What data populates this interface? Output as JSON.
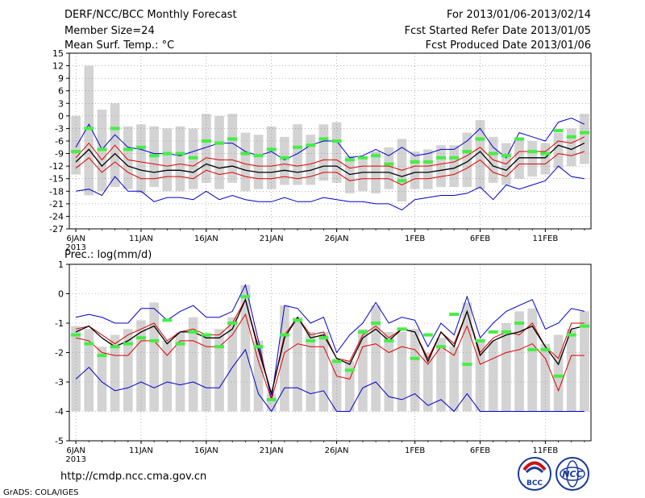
{
  "header": {
    "title": "DERF/NCC/BCC Monthly Forecast",
    "member_size": "Member Size=24",
    "variable": "Mean Surf. Temp.: °C",
    "forecast_range": "For 2013/01/06-2013/02/14",
    "started_refer": "Fcst Started Refer Date 2013/01/05",
    "produced": "Fcst Produced Date 2013/01/06"
  },
  "footer": {
    "url": "http://cmdp.ncc.cma.gov.cn",
    "credit": "GrADS: COLA/IGES",
    "logo_bcc_text": "BCC",
    "logo_ncc_text": "NCC"
  },
  "colors": {
    "bar": "#d3d3d3",
    "member_mark": "#44ee44",
    "mean_line": "#000000",
    "spread_line": "#dd0000",
    "extreme_line": "#0000cc",
    "grid": "#888888"
  },
  "chart_data": [
    {
      "type": "line",
      "title": "Mean Surf. Temp.: °C",
      "x_ticks": [
        {
          "day": 1,
          "label": "6JAN",
          "sub": "2013"
        },
        {
          "day": 6,
          "label": "11JAN"
        },
        {
          "day": 11,
          "label": "16JAN"
        },
        {
          "day": 16,
          "label": "21JAN"
        },
        {
          "day": 21,
          "label": "26JAN"
        },
        {
          "day": 27,
          "label": "1FEB"
        },
        {
          "day": 32,
          "label": "6FEB"
        },
        {
          "day": 37,
          "label": "11FEB"
        }
      ],
      "xlim": [
        0.5,
        40.5
      ],
      "ylim": [
        -27,
        15
      ],
      "yticks": [
        15,
        12,
        9,
        6,
        3,
        0,
        -3,
        -6,
        -9,
        -12,
        -15,
        -18,
        -21,
        -24,
        -27
      ],
      "bar_top": [
        0.0,
        12.0,
        1.5,
        3.0,
        -2.5,
        -2.0,
        -2.5,
        -3.0,
        -2.5,
        -3.0,
        0.5,
        0.0,
        0.5,
        -4.0,
        -4.5,
        -2.5,
        -5.0,
        -2.0,
        -4.5,
        -2.0,
        -1.5,
        -9.5,
        -10.0,
        -8.5,
        -7.5,
        -5.5,
        -8.5,
        -8.0,
        -7.0,
        -7.0,
        -4.0,
        -1.0,
        -5.0,
        -6.5,
        -5.5,
        -6.0,
        -6.5,
        -4.0,
        -3.0,
        0.5
      ],
      "bar_bottom": [
        -14.0,
        -19.0,
        -18.0,
        -17.0,
        -17.5,
        -18.5,
        -17.0,
        -18.0,
        -18.0,
        -17.5,
        -16.0,
        -17.5,
        -16.0,
        -18.0,
        -17.5,
        -17.5,
        -16.5,
        -16.5,
        -16.5,
        -15.5,
        -16.0,
        -18.5,
        -18.0,
        -18.5,
        -17.5,
        -20.5,
        -17.5,
        -17.5,
        -17.0,
        -17.0,
        -17.0,
        -17.5,
        -16.0,
        -16.5,
        -15.0,
        -14.5,
        -14.0,
        -12.5,
        -12.0,
        -11.5
      ],
      "member_marks": [
        -8.5,
        -3.0,
        -8.0,
        -3.0,
        -8.0,
        -7.5,
        -9.5,
        -9.0,
        -9.0,
        -10.0,
        -6.0,
        -6.5,
        -5.5,
        -9.0,
        -9.5,
        -8.0,
        -10.0,
        -7.5,
        -7.0,
        -5.5,
        -6.0,
        -10.5,
        -10.0,
        -9.5,
        -11.5,
        -15.5,
        -11.0,
        -11.0,
        -10.0,
        -10.0,
        -8.5,
        -5.5,
        -9.0,
        -9.5,
        -5.5,
        -8.5,
        -9.0,
        -3.5,
        -5.0,
        -4.0
      ],
      "series": [
        {
          "name": "max",
          "color": "#0000cc",
          "values": [
            -7.5,
            -2.0,
            -8.0,
            -4.5,
            -7.5,
            -8.0,
            -9.0,
            -9.0,
            -9.5,
            -8.5,
            -7.5,
            -6.5,
            -6.5,
            -8.5,
            -9.5,
            -8.5,
            -10.5,
            -9.0,
            -7.0,
            -6.0,
            -6.0,
            -10.0,
            -9.5,
            -8.0,
            -9.5,
            -7.5,
            -9.5,
            -9.0,
            -8.0,
            -8.0,
            -6.0,
            -3.0,
            -7.5,
            -10.0,
            -4.0,
            -5.0,
            -6.0,
            -1.5,
            -0.5,
            -2.0
          ]
        },
        {
          "name": "upper",
          "color": "#dd0000",
          "values": [
            -10.0,
            -6.5,
            -10.5,
            -7.0,
            -10.5,
            -11.0,
            -11.5,
            -12.0,
            -11.5,
            -12.0,
            -10.0,
            -10.5,
            -10.5,
            -11.5,
            -12.0,
            -12.0,
            -11.5,
            -12.0,
            -11.5,
            -10.5,
            -10.5,
            -12.5,
            -12.0,
            -12.0,
            -12.0,
            -13.0,
            -12.0,
            -12.0,
            -11.5,
            -11.0,
            -9.5,
            -7.5,
            -10.5,
            -11.5,
            -8.5,
            -8.5,
            -8.5,
            -6.0,
            -6.5,
            -5.0
          ]
        },
        {
          "name": "mean",
          "color": "#000000",
          "values": [
            -11.0,
            -8.0,
            -12.0,
            -9.0,
            -12.0,
            -13.0,
            -13.5,
            -13.0,
            -13.0,
            -13.5,
            -11.5,
            -12.5,
            -12.0,
            -13.0,
            -13.5,
            -13.5,
            -13.0,
            -13.5,
            -13.0,
            -12.0,
            -12.0,
            -14.0,
            -13.5,
            -13.5,
            -13.5,
            -14.5,
            -13.5,
            -13.5,
            -13.0,
            -12.5,
            -11.0,
            -8.5,
            -12.0,
            -13.0,
            -10.0,
            -10.0,
            -10.0,
            -7.0,
            -8.0,
            -6.5
          ]
        },
        {
          "name": "lower",
          "color": "#dd0000",
          "values": [
            -12.5,
            -10.0,
            -13.5,
            -11.0,
            -13.5,
            -15.0,
            -15.0,
            -14.5,
            -14.5,
            -15.0,
            -13.0,
            -14.0,
            -13.5,
            -14.5,
            -15.0,
            -15.0,
            -14.5,
            -15.0,
            -14.5,
            -13.5,
            -13.5,
            -15.5,
            -15.0,
            -15.0,
            -15.0,
            -16.5,
            -15.0,
            -15.0,
            -14.5,
            -14.0,
            -12.5,
            -10.5,
            -13.5,
            -14.5,
            -11.5,
            -11.5,
            -11.5,
            -9.0,
            -9.5,
            -8.5
          ]
        },
        {
          "name": "min",
          "color": "#0000cc",
          "values": [
            -18.0,
            -17.5,
            -19.0,
            -14.5,
            -18.0,
            -18.0,
            -20.5,
            -19.5,
            -19.5,
            -20.0,
            -18.0,
            -20.0,
            -19.0,
            -20.0,
            -20.5,
            -20.5,
            -19.5,
            -20.5,
            -20.5,
            -19.5,
            -20.0,
            -20.5,
            -20.5,
            -21.0,
            -21.0,
            -22.5,
            -20.0,
            -19.5,
            -19.0,
            -19.0,
            -18.5,
            -17.0,
            -20.0,
            -16.5,
            -17.5,
            -16.5,
            -15.5,
            -12.0,
            -14.5,
            -15.0
          ]
        }
      ]
    },
    {
      "type": "line",
      "title": "Prec.: log(mm/d)",
      "x_ticks": [
        {
          "day": 1,
          "label": "6JAN",
          "sub": "2013"
        },
        {
          "day": 6,
          "label": "11JAN"
        },
        {
          "day": 11,
          "label": "16JAN"
        },
        {
          "day": 16,
          "label": "21JAN"
        },
        {
          "day": 21,
          "label": "26JAN"
        },
        {
          "day": 27,
          "label": "1FEB"
        },
        {
          "day": 32,
          "label": "6FEB"
        },
        {
          "day": 37,
          "label": "11FEB"
        }
      ],
      "xlim": [
        0.5,
        40.5
      ],
      "ylim": [
        -5,
        1
      ],
      "yticks": [
        1,
        0,
        -1,
        -2,
        -3,
        -4,
        -5
      ],
      "bar_top": [
        -1.1,
        -1.2,
        -1.8,
        -1.4,
        -1.2,
        -0.9,
        -0.3,
        -1.6,
        -1.3,
        -0.8,
        -1.4,
        -1.2,
        -0.8,
        0.3,
        -1.6,
        -3.4,
        -0.4,
        -0.8,
        -1.3,
        -1.3,
        -2.2,
        -2.3,
        -1.2,
        -0.4,
        -1.3,
        -1.3,
        -1.2,
        -2.0,
        -1.5,
        -1.8,
        -0.3,
        -1.6,
        -1.6,
        -1.0,
        -0.6,
        -0.5,
        -1.7,
        -1.4,
        -1.2,
        -0.6
      ],
      "bar_bottom": [
        -4.0,
        -4.0,
        -4.0,
        -4.0,
        -4.0,
        -4.0,
        -4.0,
        -4.0,
        -4.0,
        -4.0,
        -4.0,
        -4.0,
        -4.0,
        -4.0,
        -4.0,
        -4.0,
        -4.0,
        -4.0,
        -4.0,
        -4.0,
        -4.0,
        -4.0,
        -4.0,
        -4.0,
        -4.0,
        -4.0,
        -4.0,
        -4.0,
        -4.0,
        -4.0,
        -4.0,
        -4.0,
        -4.0,
        -4.0,
        -4.0,
        -4.0,
        -4.0,
        -4.0,
        -4.0,
        -4.0
      ],
      "member_marks": [
        -1.4,
        -1.7,
        -2.1,
        -1.8,
        -1.7,
        -1.5,
        -1.6,
        -0.9,
        -1.7,
        -1.3,
        -1.4,
        -1.8,
        -1.0,
        -0.1,
        -1.8,
        -3.6,
        -1.4,
        -0.9,
        -1.6,
        -1.5,
        -2.3,
        -2.6,
        -1.3,
        -1.0,
        -1.6,
        -1.2,
        -2.2,
        -1.4,
        -1.8,
        -0.7,
        -2.4,
        -1.6,
        -1.3,
        -1.3,
        -1.0,
        -1.9,
        -1.9,
        -2.8,
        -1.4,
        -1.1
      ],
      "series": [
        {
          "name": "max",
          "color": "#0000cc",
          "values": [
            -0.8,
            -0.7,
            -0.8,
            -1.0,
            -1.0,
            -0.5,
            -0.5,
            -0.9,
            -0.6,
            -0.4,
            -0.8,
            -0.8,
            -0.6,
            0.3,
            -1.6,
            -3.6,
            -0.4,
            -0.5,
            -1.0,
            -0.8,
            -2.0,
            -1.4,
            -1.0,
            -0.3,
            -1.0,
            -0.8,
            -0.9,
            -1.8,
            -1.0,
            -1.4,
            -0.1,
            -1.5,
            -1.0,
            -0.6,
            -0.4,
            -0.2,
            -1.2,
            -1.0,
            -0.5,
            -0.6
          ]
        },
        {
          "name": "upper",
          "color": "#dd0000",
          "values": [
            -1.2,
            -1.1,
            -1.4,
            -1.7,
            -1.4,
            -1.2,
            -1.0,
            -1.6,
            -1.3,
            -1.2,
            -1.4,
            -1.4,
            -1.0,
            -0.2,
            -1.8,
            -3.4,
            -1.4,
            -0.8,
            -1.4,
            -1.3,
            -2.2,
            -2.3,
            -1.4,
            -1.1,
            -1.5,
            -1.2,
            -1.3,
            -2.2,
            -1.3,
            -1.7,
            -0.6,
            -2.0,
            -1.5,
            -1.3,
            -1.4,
            -1.0,
            -1.8,
            -2.2,
            -1.0,
            -1.0
          ]
        },
        {
          "name": "mean",
          "color": "#000000",
          "values": [
            -1.3,
            -1.1,
            -1.5,
            -1.8,
            -1.6,
            -1.3,
            -1.1,
            -1.7,
            -1.3,
            -1.3,
            -1.5,
            -1.5,
            -1.2,
            -0.2,
            -1.9,
            -3.4,
            -1.5,
            -0.8,
            -1.5,
            -1.4,
            -2.2,
            -2.4,
            -1.5,
            -1.2,
            -1.6,
            -1.2,
            -1.3,
            -2.3,
            -1.3,
            -1.8,
            -0.6,
            -2.1,
            -1.6,
            -1.4,
            -1.3,
            -1.1,
            -1.8,
            -2.4,
            -1.2,
            -1.1
          ]
        },
        {
          "name": "lower",
          "color": "#dd0000",
          "values": [
            -1.5,
            -1.6,
            -2.0,
            -2.1,
            -2.1,
            -1.6,
            -1.6,
            -2.1,
            -1.6,
            -1.6,
            -1.8,
            -1.8,
            -1.4,
            -0.7,
            -2.3,
            -3.6,
            -2.0,
            -1.7,
            -1.8,
            -1.8,
            -2.8,
            -2.9,
            -1.8,
            -1.7,
            -2.0,
            -1.8,
            -1.9,
            -2.4,
            -1.8,
            -2.1,
            -1.1,
            -2.4,
            -2.2,
            -2.0,
            -1.9,
            -1.7,
            -2.2,
            -3.3,
            -2.1,
            -2.1
          ]
        },
        {
          "name": "min",
          "color": "#0000cc",
          "values": [
            -2.9,
            -2.5,
            -3.0,
            -3.3,
            -3.2,
            -3.0,
            -3.2,
            -3.0,
            -3.1,
            -3.0,
            -3.2,
            -3.2,
            -2.5,
            -1.9,
            -3.4,
            -4.0,
            -3.2,
            -3.2,
            -3.4,
            -3.3,
            -4.0,
            -4.0,
            -3.2,
            -3.0,
            -3.5,
            -3.6,
            -3.4,
            -3.8,
            -3.6,
            -4.0,
            -3.4,
            -4.0,
            -4.0,
            -4.0,
            -4.0,
            -4.0,
            -4.0,
            -4.0,
            -4.0,
            -4.0
          ]
        }
      ]
    }
  ]
}
